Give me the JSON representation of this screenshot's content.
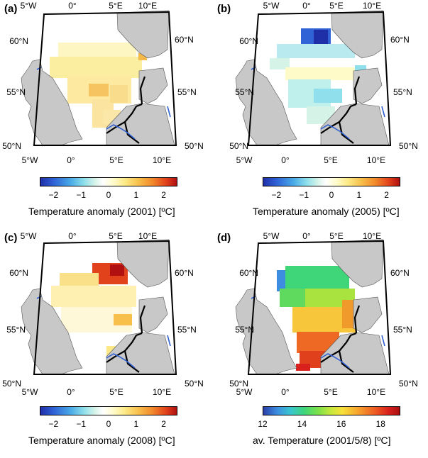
{
  "panels": [
    {
      "label": "(a)",
      "colorbar": {
        "ticks": [
          "−2",
          "−1",
          "0",
          "1",
          "2"
        ],
        "title": "Temperature anomaly (2001) [ºC]",
        "range": [
          -2.5,
          2.5
        ]
      },
      "axes": {
        "top": [
          "5°W",
          "0°",
          "5°E",
          "10°E"
        ],
        "bottom": [
          "5°W",
          "0°",
          "5°E",
          "10°E"
        ],
        "left": [
          "60°N",
          "55°N",
          "50°N"
        ],
        "right": [
          "60°N",
          "55°N",
          "50°N"
        ]
      }
    },
    {
      "label": "(b)",
      "colorbar": {
        "ticks": [
          "−2",
          "−1",
          "0",
          "1",
          "2"
        ],
        "title": "Temperature anomaly (2005) [ºC]",
        "range": [
          -2.5,
          2.5
        ]
      },
      "axes": {
        "top": [
          "5°W",
          "0°",
          "5°E",
          "10°E"
        ],
        "bottom": [
          "5°W",
          "0°",
          "5°E",
          "10°E"
        ],
        "left": [
          "60°N",
          "55°N",
          "50°N"
        ],
        "right": [
          "60°N",
          "55°N",
          "50°N"
        ]
      }
    },
    {
      "label": "(c)",
      "colorbar": {
        "ticks": [
          "−2",
          "−1",
          "0",
          "1",
          "2"
        ],
        "title": "Temperature anomaly (2008) [ºC]",
        "range": [
          -2.5,
          2.5
        ]
      },
      "axes": {
        "top": [
          "5°W",
          "0°",
          "5°E",
          "10°E"
        ],
        "bottom": [
          "5°W",
          "0°",
          "5°E",
          "10°E"
        ],
        "left": [
          "60°N",
          "55°N",
          "50°N"
        ],
        "right": [
          "60°N",
          "55°N",
          "50°N"
        ]
      }
    },
    {
      "label": "(d)",
      "colorbar": {
        "ticks": [
          "12",
          "14",
          "16",
          "18"
        ],
        "title": "av. Temperature (2001/5/8) [ºC]",
        "range": [
          12,
          19
        ]
      },
      "axes": {
        "top": [
          "5°W",
          "0°",
          "5°E",
          "10°E"
        ],
        "bottom": [
          "5°W",
          "0°",
          "5°E",
          "10°E"
        ],
        "left": [
          "60°N",
          "55°N",
          "50°N"
        ],
        "right": [
          "60°N",
          "55°N",
          "50°N"
        ]
      }
    }
  ],
  "colors": {
    "land": "#c8c8c8",
    "border_national": "#000000",
    "river": "#2f5fd0",
    "frame": "#000000"
  }
}
